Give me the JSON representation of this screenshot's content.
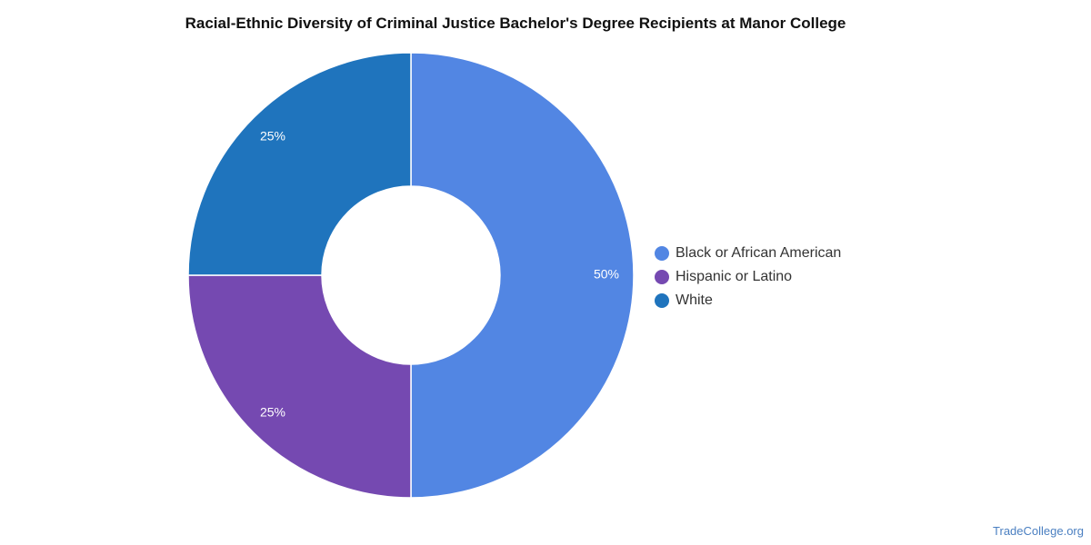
{
  "chart_data": {
    "type": "pie",
    "variant": "donut",
    "title": "Racial-Ethnic Diversity of Criminal Justice Bachelor's Degree Recipients at Manor College",
    "slices": [
      {
        "label": "Black or African American",
        "value": 50,
        "display": "50%",
        "color": "#5286e3"
      },
      {
        "label": "Hispanic or Latino",
        "value": 25,
        "display": "25%",
        "color": "#7549b1"
      },
      {
        "label": "White",
        "value": 25,
        "display": "25%",
        "color": "#1f74bd"
      }
    ],
    "legend_position": "right"
  },
  "footer": {
    "source": "TradeCollege.org"
  }
}
